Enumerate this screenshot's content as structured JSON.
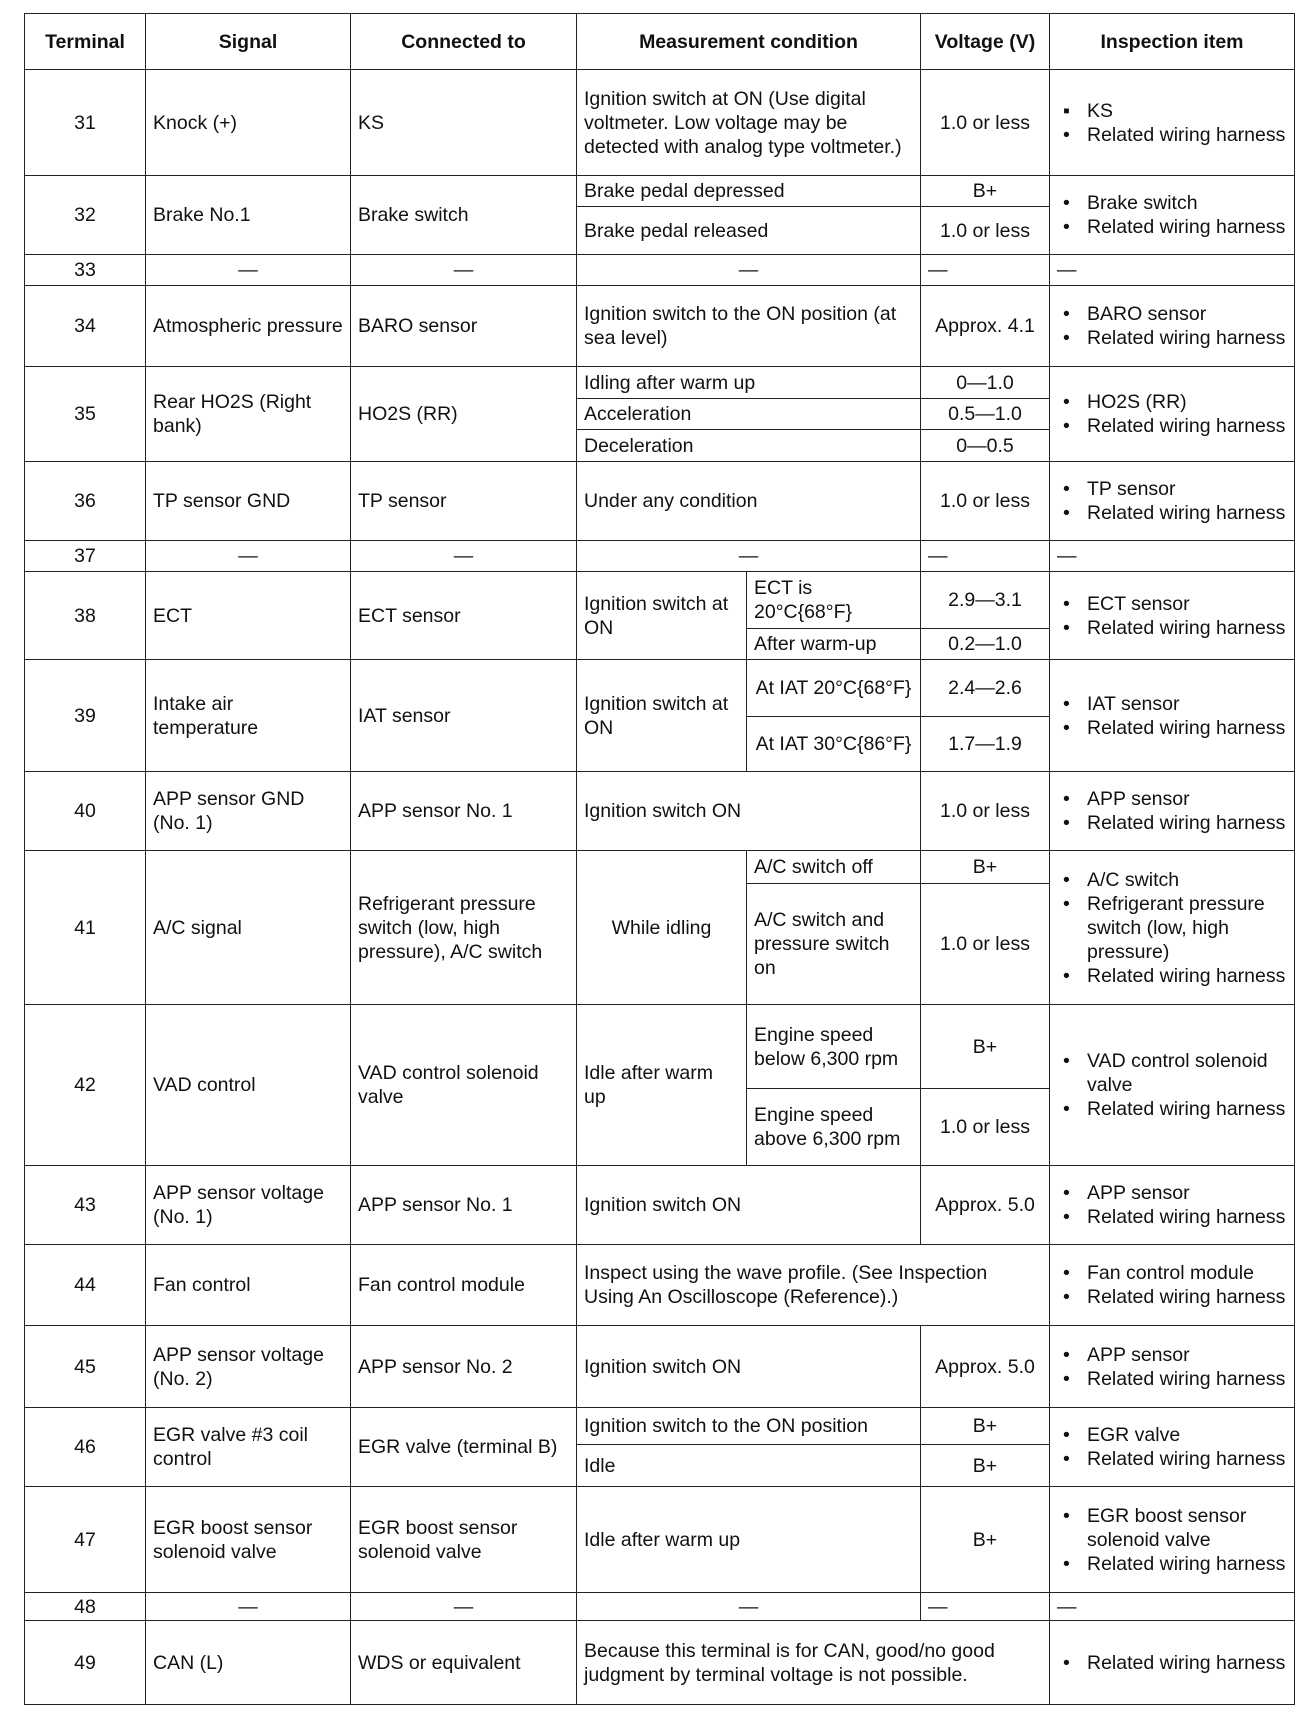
{
  "headers": [
    "Terminal",
    "Signal",
    "Connected to",
    "Measurement condition",
    "Voltage (V)",
    "Inspection item"
  ],
  "rows": [
    {
      "terminal": "31",
      "signal": "Knock (+)",
      "connected": "KS",
      "conds": [
        {
          "cond": "Ignition switch at ON (Use digital voltmeter. Low voltage may be detected with analog type voltmeter.)",
          "voltage": "1.0 or less"
        }
      ],
      "inspection": [
        "KS",
        "Related wiring harness"
      ]
    },
    {
      "terminal": "32",
      "signal": "Brake No.1",
      "connected": "Brake switch",
      "conds": [
        {
          "cond": "Brake pedal depressed",
          "voltage": "B+"
        },
        {
          "cond": "Brake pedal released",
          "voltage": "1.0 or less"
        }
      ],
      "inspection": [
        "Brake switch",
        "Related wiring harness"
      ]
    },
    {
      "terminal": "33",
      "blank": true,
      "dash": "—"
    },
    {
      "terminal": "34",
      "signal": "Atmospheric pressure",
      "connected": "BARO sensor",
      "conds": [
        {
          "cond": "Ignition switch to the ON position (at sea level)",
          "voltage": "Approx. 4.1"
        }
      ],
      "inspection": [
        "BARO sensor",
        "Related wiring harness"
      ]
    },
    {
      "terminal": "35",
      "signal": "Rear HO2S (Right bank)",
      "connected": "HO2S (RR)",
      "conds": [
        {
          "cond": "Idling after warm up",
          "voltage": "0—1.0"
        },
        {
          "cond": "Acceleration",
          "voltage": "0.5—1.0"
        },
        {
          "cond": "Deceleration",
          "voltage": "0—0.5"
        }
      ],
      "inspection": [
        "HO2S (RR)",
        "Related wiring harness"
      ]
    },
    {
      "terminal": "36",
      "signal": "TP sensor GND",
      "connected": "TP sensor",
      "conds": [
        {
          "cond": "Under any condition",
          "voltage": "1.0 or less"
        }
      ],
      "inspection": [
        "TP sensor",
        "Related wiring harness"
      ]
    },
    {
      "terminal": "37",
      "blank": true,
      "dash": "—"
    },
    {
      "terminal": "38",
      "signal": "ECT",
      "connected": "ECT sensor",
      "group": "Ignition switch at ON",
      "conds": [
        {
          "cond": "ECT is 20°C{68°F}",
          "voltage": "2.9—3.1"
        },
        {
          "cond": "After warm-up",
          "voltage": "0.2—1.0"
        }
      ],
      "inspection": [
        "ECT sensor",
        "Related wiring harness"
      ]
    },
    {
      "terminal": "39",
      "signal": "Intake air temperature",
      "connected": "IAT sensor",
      "group": "Ignition switch at ON",
      "center_sub": true,
      "conds": [
        {
          "cond": "At IAT 20°C{68°F}",
          "voltage": "2.4—2.6"
        },
        {
          "cond": "At IAT 30°C{86°F}",
          "voltage": "1.7—1.9"
        }
      ],
      "inspection": [
        "IAT sensor",
        "Related wiring harness"
      ]
    },
    {
      "terminal": "40",
      "signal": "APP sensor GND (No. 1)",
      "connected": "APP sensor No. 1",
      "conds": [
        {
          "cond": "Ignition switch ON",
          "voltage": "1.0 or less"
        }
      ],
      "inspection": [
        "APP sensor",
        "Related wiring harness"
      ]
    },
    {
      "terminal": "41",
      "signal": "A/C signal",
      "connected": "Refrigerant pressure switch (low, high pressure), A/C switch",
      "group": "While idling",
      "group_center": true,
      "conds": [
        {
          "cond": "A/C switch off",
          "voltage": "B+"
        },
        {
          "cond": "A/C switch and pressure switch on",
          "voltage": "1.0 or less"
        }
      ],
      "inspection": [
        "A/C switch",
        "Refrigerant pressure switch (low, high pressure)",
        "Related wiring harness"
      ]
    },
    {
      "terminal": "42",
      "signal": "VAD control",
      "connected": "VAD control solenoid valve",
      "group": "Idle after warm up",
      "conds": [
        {
          "cond": "Engine speed below 6,300 rpm",
          "voltage": "B+"
        },
        {
          "cond": "Engine speed above 6,300 rpm",
          "voltage": "1.0 or less"
        }
      ],
      "inspection": [
        "VAD control solenoid valve",
        "Related wiring harness"
      ]
    },
    {
      "terminal": "43",
      "signal": "APP sensor voltage (No. 1)",
      "connected": "APP sensor No. 1",
      "conds": [
        {
          "cond": "Ignition switch ON",
          "voltage": "Approx. 5.0"
        }
      ],
      "inspection": [
        "APP sensor",
        "Related wiring harness"
      ]
    },
    {
      "terminal": "44",
      "signal": "Fan control",
      "connected": "Fan control module",
      "merged": "Inspect using the wave profile. (See Inspection Using An Oscilloscope (Reference).)",
      "inspection": [
        "Fan control module",
        "Related wiring harness"
      ]
    },
    {
      "terminal": "45",
      "signal": "APP sensor voltage (No. 2)",
      "connected": "APP sensor No. 2",
      "conds": [
        {
          "cond": "Ignition switch ON",
          "voltage": "Approx. 5.0"
        }
      ],
      "inspection": [
        "APP sensor",
        "Related wiring harness"
      ]
    },
    {
      "terminal": "46",
      "signal": "EGR valve #3 coil control",
      "connected": "EGR valve (terminal B)",
      "conds": [
        {
          "cond": "Ignition switch to the ON position",
          "voltage": "B+"
        },
        {
          "cond": "Idle",
          "voltage": "B+"
        }
      ],
      "inspection": [
        "EGR valve",
        "Related wiring harness"
      ]
    },
    {
      "terminal": "47",
      "signal": "EGR boost sensor solenoid valve",
      "connected": "EGR boost sensor solenoid valve",
      "conds": [
        {
          "cond": "Idle after warm up",
          "voltage": "B+"
        }
      ],
      "inspection": [
        "EGR boost sensor solenoid valve",
        "Related wiring harness"
      ]
    },
    {
      "terminal": "48",
      "blank": true,
      "dash": "—"
    },
    {
      "terminal": "49",
      "signal": "CAN (L)",
      "connected": "WDS or equivalent",
      "merged": "Because this terminal is for CAN, good/no good judgment by terminal voltage is not possible.",
      "inspection": [
        "Related wiring harness"
      ]
    }
  ]
}
